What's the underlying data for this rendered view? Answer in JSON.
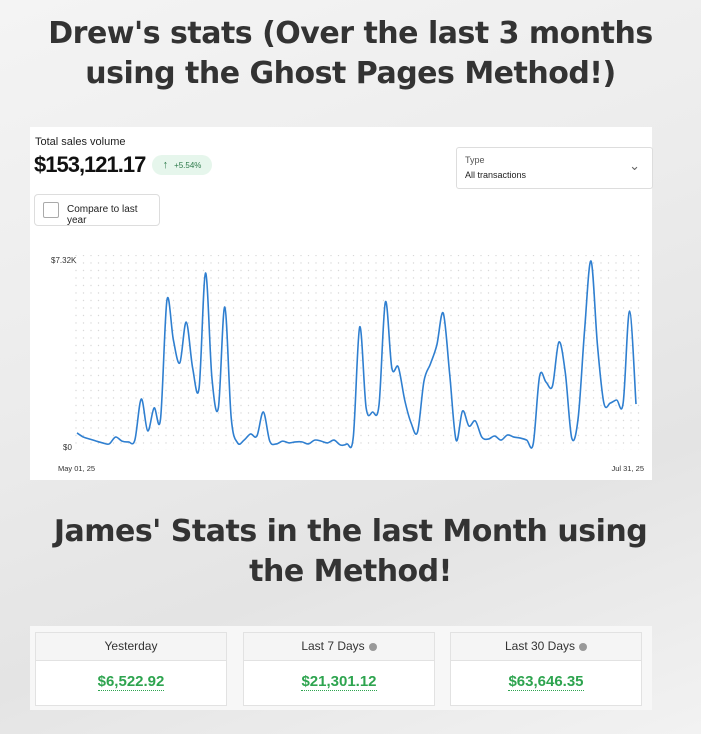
{
  "heading1": {
    "line1": "Drew's stats (Over the last 3 months",
    "line2": "using the Ghost Pages Method!)"
  },
  "heading2": {
    "line1": "James' Stats in the last Month using",
    "line2": "the Method!"
  },
  "sales": {
    "label": "Total sales volume",
    "total": "$153,121.17",
    "change": "+5.54%",
    "change_icon": "arrow-up-icon",
    "compare_label": "Compare to last year",
    "compare_checked": false,
    "type_label": "Type",
    "type_value": "All transactions"
  },
  "chart_data": {
    "type": "line",
    "y_ticks": [
      "$7.32K",
      "$0"
    ],
    "ylim": [
      0,
      7320
    ],
    "x_ticks": [
      "May 01, 25",
      "Jul 31, 25"
    ],
    "grid": "dotted",
    "color": "#2f7fd0",
    "values": [
      550,
      390,
      310,
      230,
      160,
      120,
      390,
      230,
      200,
      270,
      1880,
      630,
      1530,
      1100,
      5750,
      4190,
      3290,
      4890,
      3090,
      2310,
      6810,
      2700,
      1530,
      5480,
      1140,
      160,
      270,
      510,
      430,
      1370,
      230,
      120,
      230,
      160,
      200,
      200,
      120,
      270,
      230,
      160,
      270,
      80,
      120,
      390,
      4700,
      1530,
      1370,
      1640,
      5680,
      3090,
      3130,
      1840,
      940,
      590,
      2580,
      3250,
      3990,
      5240,
      2860,
      270,
      1410,
      820,
      1020,
      390,
      310,
      430,
      270,
      470,
      390,
      350,
      270,
      120,
      2780,
      2540,
      2390,
      4110,
      2900,
      350,
      1140,
      4580,
      7280,
      3990,
      1720,
      1720,
      1840,
      1720,
      5320,
      1680
    ]
  },
  "stats": [
    {
      "label": "Yesterday",
      "value": "$6,522.92",
      "info": false
    },
    {
      "label": "Last 7 Days",
      "value": "$21,301.12",
      "info": true
    },
    {
      "label": "Last 30 Days",
      "value": "$63,646.35",
      "info": true
    }
  ],
  "colors": {
    "accent_green": "#2ea44f",
    "line": "#2f7fd0"
  }
}
